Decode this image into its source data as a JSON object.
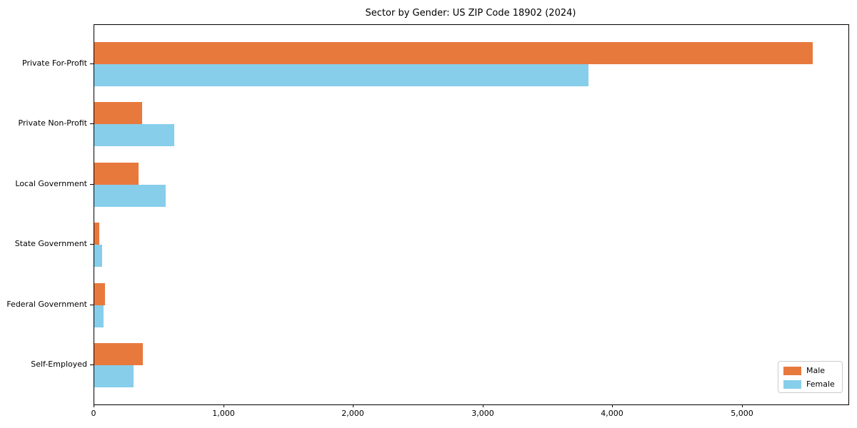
{
  "chart_data": {
    "type": "bar",
    "orientation": "horizontal",
    "title": "Sector by Gender: US ZIP Code 18902 (2024)",
    "categories": [
      "Private For-Profit",
      "Private Non-Profit",
      "Local Government",
      "State Government",
      "Federal Government",
      "Self-Employed"
    ],
    "series": [
      {
        "name": "Male",
        "color": "#E8793D",
        "values": [
          5540,
          370,
          340,
          40,
          80,
          375
        ]
      },
      {
        "name": "Female",
        "color": "#87CEEB",
        "values": [
          3810,
          615,
          550,
          58,
          69,
          305
        ]
      }
    ],
    "xlabel": "",
    "ylabel": "",
    "xlim": [
      0,
      5818
    ],
    "xticks": [
      0,
      1000,
      2000,
      3000,
      4000,
      5000
    ],
    "xtick_labels": [
      "0",
      "1,000",
      "2,000",
      "3,000",
      "4,000",
      "5,000"
    ],
    "grid": false,
    "legend_position": "lower right",
    "spine_box": true
  },
  "legend": {
    "items": [
      {
        "label": "Male"
      },
      {
        "label": "Female"
      }
    ]
  }
}
